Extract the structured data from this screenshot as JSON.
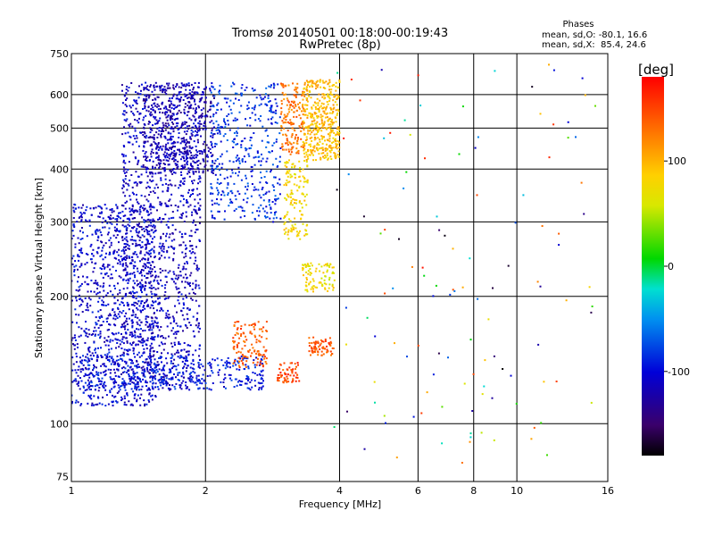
{
  "title_line1": "Tromsø 20140501 00:18:00-00:19:43",
  "title_line2": "RwPretec (8p)",
  "stats": {
    "header": "Phases",
    "line1": "mean, sd,O: -80.1, 16.6",
    "line2": "mean, sd,X:  85.4, 24.6"
  },
  "chart_data": {
    "type": "scatter",
    "xlabel": "Frequency [MHz]",
    "ylabel": "Stationary phase Virtual Height [km]",
    "x_scale": "log",
    "y_scale": "log",
    "xlim": [
      1,
      16
    ],
    "ylim": [
      73,
      750
    ],
    "x_ticks": [
      1,
      2,
      4,
      6,
      8,
      10,
      16
    ],
    "y_ticks": [
      75,
      100,
      200,
      300,
      400,
      500,
      600,
      750
    ],
    "x_gridlines": [
      2,
      4,
      6,
      8,
      10
    ],
    "y_gridlines": [
      100,
      200,
      300,
      400,
      500,
      600
    ],
    "colorbar": {
      "label": "[deg]",
      "range": [
        -180,
        180
      ],
      "ticks": [
        -100,
        0,
        100
      ]
    },
    "clusters": [
      {
        "name": "O-mode low band",
        "x": [
          1.0,
          1.55
        ],
        "y": [
          110,
          330
        ],
        "phase": -105,
        "n": 1000
      },
      {
        "name": "O-mode main trace",
        "x": [
          1.3,
          1.95
        ],
        "y": [
          120,
          640
        ],
        "phase": -110,
        "n": 1300
      },
      {
        "name": "O-mode upper",
        "x": [
          1.45,
          2.1
        ],
        "y": [
          390,
          640
        ],
        "phase": -120,
        "n": 450
      },
      {
        "name": "O-mode bottom edge",
        "x": [
          1.05,
          2.7
        ],
        "y": [
          120,
          145
        ],
        "phase": -95,
        "n": 400
      },
      {
        "name": "O-mode 2.1-2.9 MHz",
        "x": [
          2.05,
          2.95
        ],
        "y": [
          300,
          640
        ],
        "phase": -85,
        "n": 420
      },
      {
        "name": "X-mode 3.0-3.3 MHz upper",
        "x": [
          2.95,
          3.35
        ],
        "y": [
          430,
          640
        ],
        "phase": 130,
        "n": 160
      },
      {
        "name": "X-mode 3.3-4.0 MHz upper",
        "x": [
          3.3,
          4.0
        ],
        "y": [
          420,
          650
        ],
        "phase": 95,
        "n": 420
      },
      {
        "name": "X-mode 3.0-3.4 MHz mid",
        "x": [
          3.0,
          3.4
        ],
        "y": [
          270,
          420
        ],
        "phase": 80,
        "n": 140
      },
      {
        "name": "X-mode 3.3-3.9 MHz mid",
        "x": [
          3.3,
          3.9
        ],
        "y": [
          205,
          240
        ],
        "phase": 75,
        "n": 90
      },
      {
        "name": "X-mode 2.3-2.7 MHz low",
        "x": [
          2.3,
          2.75
        ],
        "y": [
          135,
          175
        ],
        "phase": 140,
        "n": 120
      },
      {
        "name": "X-mode 2.9-3.2 MHz low",
        "x": [
          2.9,
          3.25
        ],
        "y": [
          125,
          140
        ],
        "phase": 150,
        "n": 60
      },
      {
        "name": "X-mode 3.4-3.9 MHz low",
        "x": [
          3.4,
          3.9
        ],
        "y": [
          145,
          160
        ],
        "phase": 145,
        "n": 70
      },
      {
        "name": "Scattered echoes",
        "x": [
          3.8,
          15.0
        ],
        "y": [
          80,
          720
        ],
        "phase": 0,
        "spread": 180,
        "n": 120
      }
    ]
  }
}
